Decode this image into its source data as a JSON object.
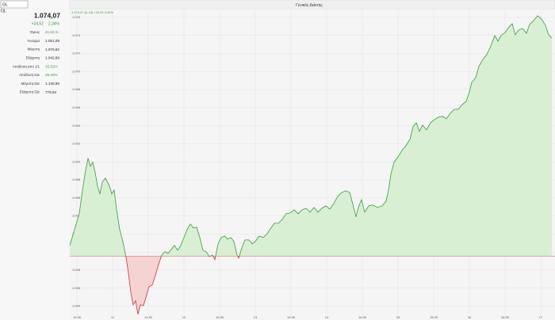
{
  "panel": {
    "symbol_input": "GL",
    "symbol": "ΓΔ",
    "last": "1.074,07",
    "change": "+24,52",
    "change_pct": "2,34%",
    "change_color": "#3a9a3a",
    "rows": [
      {
        "label": "Όγκος",
        "value": "41,62 m",
        "color": "#3a9a3a"
      },
      {
        "label": "Άνοιγμα",
        "value": "1.051,09",
        "color": "#222222"
      },
      {
        "label": "Μέγιστη",
        "value": "1.076,62",
        "color": "#222222"
      },
      {
        "label": "Ελάχιστη",
        "value": "1.042,89",
        "color": "#222222"
      },
      {
        "label": "Απόδοση απο 1/1",
        "value": "15,52%",
        "color": "#3a9a3a"
      },
      {
        "label": "Απόδοση 52ε",
        "value": "29,40%",
        "color": "#3a9a3a"
      },
      {
        "label": "Μέγιστη 52ε",
        "value": "1.140,96",
        "color": "#222222"
      },
      {
        "label": "Ελάχιστη 52ε",
        "value": "778,84",
        "color": "#222222"
      }
    ]
  },
  "chart_data": {
    "type": "line",
    "title": "Γενικός Δείκτης",
    "header": "1.074,07 (0,15) +24,52 2,34%",
    "baseline": 1049.55,
    "color_above": "#3a9a3a",
    "color_below": "#cc3333",
    "fill_above": "#d8efd3",
    "fill_below": "#f5d3d3",
    "grid": true,
    "xlim": [
      10.4,
      17.2
    ],
    "ylim": [
      1043,
      1076.7
    ],
    "xticks": [
      {
        "value": 10.5,
        "label": "10:30"
      },
      {
        "value": 11,
        "label": "11"
      },
      {
        "value": 11.5,
        "label": "11:30"
      },
      {
        "value": 12,
        "label": "12"
      },
      {
        "value": 12.5,
        "label": "12:30"
      },
      {
        "value": 13,
        "label": "13"
      },
      {
        "value": 13.5,
        "label": "13:30"
      },
      {
        "value": 14,
        "label": "14"
      },
      {
        "value": 14.5,
        "label": "14:30"
      },
      {
        "value": 15,
        "label": "15"
      },
      {
        "value": 15.5,
        "label": "15:30"
      },
      {
        "value": 16,
        "label": "16"
      },
      {
        "value": 16.5,
        "label": "16:30"
      },
      {
        "value": 17,
        "label": "17"
      }
    ],
    "yticks": [
      {
        "value": 1044,
        "label": "1.044"
      },
      {
        "value": 1046,
        "label": "1.046"
      },
      {
        "value": 1048,
        "label": "1.048"
      },
      {
        "value": 1050,
        "label": "1.050"
      },
      {
        "value": 1052,
        "label": "1.052"
      },
      {
        "value": 1054,
        "label": "1.054"
      },
      {
        "value": 1056,
        "label": "1.056"
      },
      {
        "value": 1058,
        "label": "1.058"
      },
      {
        "value": 1060,
        "label": "1.060"
      },
      {
        "value": 1062,
        "label": "1.062"
      },
      {
        "value": 1064,
        "label": "1.064"
      },
      {
        "value": 1066,
        "label": "1.066"
      },
      {
        "value": 1068,
        "label": "1.068"
      },
      {
        "value": 1070,
        "label": "1.070"
      },
      {
        "value": 1072,
        "label": "1.072"
      },
      {
        "value": 1074,
        "label": "1.074"
      },
      {
        "value": 1076,
        "label": "1.076"
      }
    ],
    "x": [
      10.4,
      10.467,
      10.533,
      10.578,
      10.622,
      10.656,
      10.689,
      10.722,
      10.756,
      10.789,
      10.822,
      10.856,
      10.9,
      10.956,
      10.989,
      11.022,
      11.056,
      11.1,
      11.144,
      11.189,
      11.222,
      11.256,
      11.289,
      11.322,
      11.356,
      11.389,
      11.433,
      11.467,
      11.511,
      11.556,
      11.6,
      11.644,
      11.689,
      11.733,
      11.778,
      11.822,
      11.867,
      11.911,
      11.956,
      12.0,
      12.044,
      12.089,
      12.133,
      12.178,
      12.222,
      12.267,
      12.311,
      12.356,
      12.4,
      12.433,
      12.478,
      12.522,
      12.567,
      12.611,
      12.656,
      12.7,
      12.744,
      12.767,
      12.811,
      12.856,
      12.911,
      12.956,
      13.0,
      13.056,
      13.111,
      13.167,
      13.211,
      13.267,
      13.322,
      13.378,
      13.433,
      13.489,
      13.544,
      13.6,
      13.656,
      13.711,
      13.767,
      13.822,
      13.878,
      13.933,
      13.989,
      14.044,
      14.1,
      14.156,
      14.211,
      14.267,
      14.322,
      14.367,
      14.411,
      14.444,
      14.489,
      14.533,
      14.589,
      14.644,
      14.711,
      14.778,
      14.833,
      14.867,
      14.9,
      14.944,
      15.0,
      15.056,
      15.111,
      15.167,
      15.211,
      15.256,
      15.3,
      15.344,
      15.4,
      15.456,
      15.511,
      15.567,
      15.622,
      15.678,
      15.733,
      15.789,
      15.844,
      15.9,
      15.956,
      16.0,
      16.033,
      16.089,
      16.133,
      16.189,
      16.244,
      16.3,
      16.356,
      16.4,
      16.444,
      16.5,
      16.556,
      16.6,
      16.644,
      16.689,
      16.744,
      16.8,
      16.844,
      16.9,
      16.956,
      17.011,
      17.067,
      17.111,
      17.156
    ],
    "values": [
      1050.74,
      1052.49,
      1054.25,
      1056.88,
      1059.07,
      1060.39,
      1059.51,
      1059.95,
      1058.81,
      1057.32,
      1056.44,
      1057.75,
      1058.19,
      1057.32,
      1056.44,
      1056.88,
      1054.68,
      1052.49,
      1051.18,
      1049.42,
      1047.67,
      1045.47,
      1044.16,
      1044.6,
      1043.11,
      1044.16,
      1044.07,
      1044.95,
      1046.18,
      1046.35,
      1047.4,
      1048.63,
      1049.68,
      1050.04,
      1049.86,
      1050.3,
      1050.74,
      1050.21,
      1050.74,
      1051.61,
      1052.49,
      1053.11,
      1052.67,
      1052.75,
      1051.61,
      1050.21,
      1050.04,
      1049.51,
      1049.68,
      1049.16,
      1050.91,
      1051.61,
      1051.79,
      1051.44,
      1051.61,
      1051.18,
      1049.68,
      1049.33,
      1050.47,
      1051.35,
      1051.35,
      1050.91,
      1051.18,
      1051.79,
      1051.61,
      1052.05,
      1052.58,
      1053.19,
      1053.19,
      1053.63,
      1054.25,
      1054.33,
      1054.68,
      1054.25,
      1054.68,
      1054.86,
      1054.42,
      1054.95,
      1054.42,
      1054.86,
      1055.12,
      1054.77,
      1055.39,
      1056.18,
      1056.61,
      1056.79,
      1056.61,
      1055.3,
      1053.89,
      1054.95,
      1055.82,
      1054.42,
      1055.12,
      1055.21,
      1054.95,
      1055.12,
      1055.65,
      1056.88,
      1058.63,
      1059.95,
      1060.56,
      1061.26,
      1061.79,
      1062.49,
      1063.89,
      1064.33,
      1063.37,
      1064.07,
      1063.54,
      1064.33,
      1064.68,
      1064.95,
      1065.04,
      1064.77,
      1065.39,
      1065.82,
      1065.82,
      1066.35,
      1066.7,
      1067.75,
      1068.81,
      1069.33,
      1070.56,
      1071.35,
      1071.88,
      1072.84,
      1073.98,
      1073.37,
      1073.98,
      1074.33,
      1074.95,
      1075.3,
      1074.07,
      1074.6,
      1074.77,
      1074.25,
      1075.21,
      1075.65,
      1076.18,
      1075.82,
      1075.12,
      1074.07,
      1073.72
    ]
  }
}
